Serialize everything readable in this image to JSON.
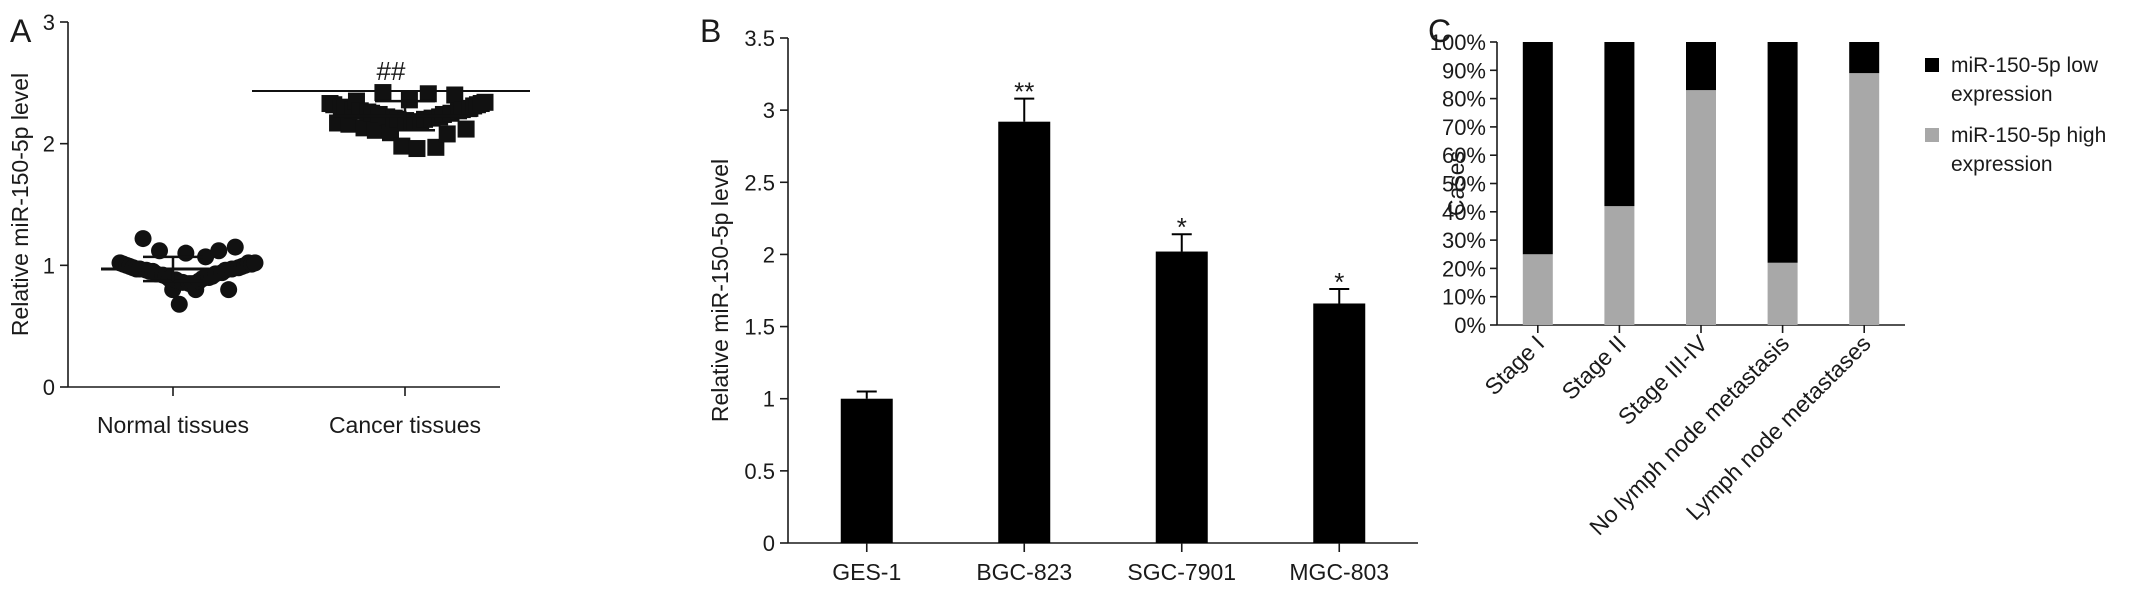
{
  "chart_data": [
    {
      "panel": "A",
      "type": "scatter",
      "ylabel": "Relative miR-150-5p level",
      "ylim": [
        0,
        3
      ],
      "yticks": [
        "0",
        "1",
        "2",
        "3"
      ],
      "categories": [
        "Normal tissues",
        "Cancer tissues"
      ],
      "series": [
        {
          "marker": "circle",
          "values": [
            1.02,
            1.01,
            1.0,
            0.99,
            0.98,
            0.97,
            0.97,
            1.22,
            0.96,
            0.95,
            0.95,
            0.93,
            1.12,
            0.92,
            0.91,
            0.89,
            0.8,
            0.88,
            0.68,
            0.86,
            1.1,
            0.85,
            0.85,
            0.8,
            0.87,
            0.89,
            1.07,
            0.9,
            0.91,
            0.93,
            1.12,
            0.94,
            0.96,
            0.8,
            0.97,
            1.15,
            0.98,
            0.99,
            1.0,
            1.02,
            1.01,
            1.02
          ]
        },
        {
          "marker": "square",
          "values": [
            2.33,
            2.32,
            2.17,
            2.3,
            2.29,
            2.16,
            2.28,
            2.35,
            2.27,
            2.13,
            2.26,
            2.25,
            2.11,
            2.24,
            2.42,
            2.22,
            2.09,
            2.21,
            2.2,
            1.98,
            2.19,
            2.36,
            2.18,
            1.96,
            2.18,
            2.2,
            2.41,
            2.21,
            1.97,
            2.22,
            2.24,
            2.08,
            2.25,
            2.4,
            2.27,
            2.28,
            2.12,
            2.29,
            2.31,
            2.32,
            2.33,
            2.34
          ]
        }
      ],
      "mean_sd": [
        {
          "mean": 0.97,
          "sd": 0.1
        },
        {
          "mean": 2.23,
          "sd": 0.12
        }
      ],
      "comparison": {
        "label": "##",
        "from": "Normal tissues",
        "to": "Cancer tissues"
      }
    },
    {
      "panel": "B",
      "type": "bar",
      "ylabel": "Relative miR-150-5p level",
      "ylim": [
        0,
        3.5
      ],
      "yticks": [
        "0",
        "0.5",
        "1",
        "1.5",
        "2",
        "2.5",
        "3",
        "3.5"
      ],
      "categories": [
        "GES-1",
        "BGC-823",
        "SGC-7901",
        "MGC-803"
      ],
      "values": [
        1.0,
        2.92,
        2.02,
        1.66
      ],
      "errors": [
        0.05,
        0.16,
        0.12,
        0.1
      ],
      "annotations": [
        "",
        "**",
        "*",
        "*"
      ]
    },
    {
      "panel": "C",
      "type": "bar",
      "stacked": true,
      "ylabel": "Cases",
      "ylim": [
        0,
        100
      ],
      "yticks": [
        "0%",
        "10%",
        "20%",
        "30%",
        "40%",
        "50%",
        "60%",
        "70%",
        "80%",
        "90%",
        "100%"
      ],
      "categories": [
        "Stage I",
        "Stage II",
        "Stage III-IV",
        "No lymph node metastasis",
        "Lymph node metastases"
      ],
      "series": [
        {
          "name": "miR-150-5p low expression",
          "legend_lines": [
            "miR-150-5p low",
            "expression"
          ],
          "color": "#000000",
          "values": [
            75,
            58,
            17,
            78,
            11
          ]
        },
        {
          "name": "miR-150-5p high expression",
          "legend_lines": [
            "miR-150-5p high",
            "expression"
          ],
          "color": "#a8a8a8",
          "values": [
            25,
            42,
            83,
            22,
            89
          ]
        }
      ],
      "legend_position": "right"
    }
  ]
}
